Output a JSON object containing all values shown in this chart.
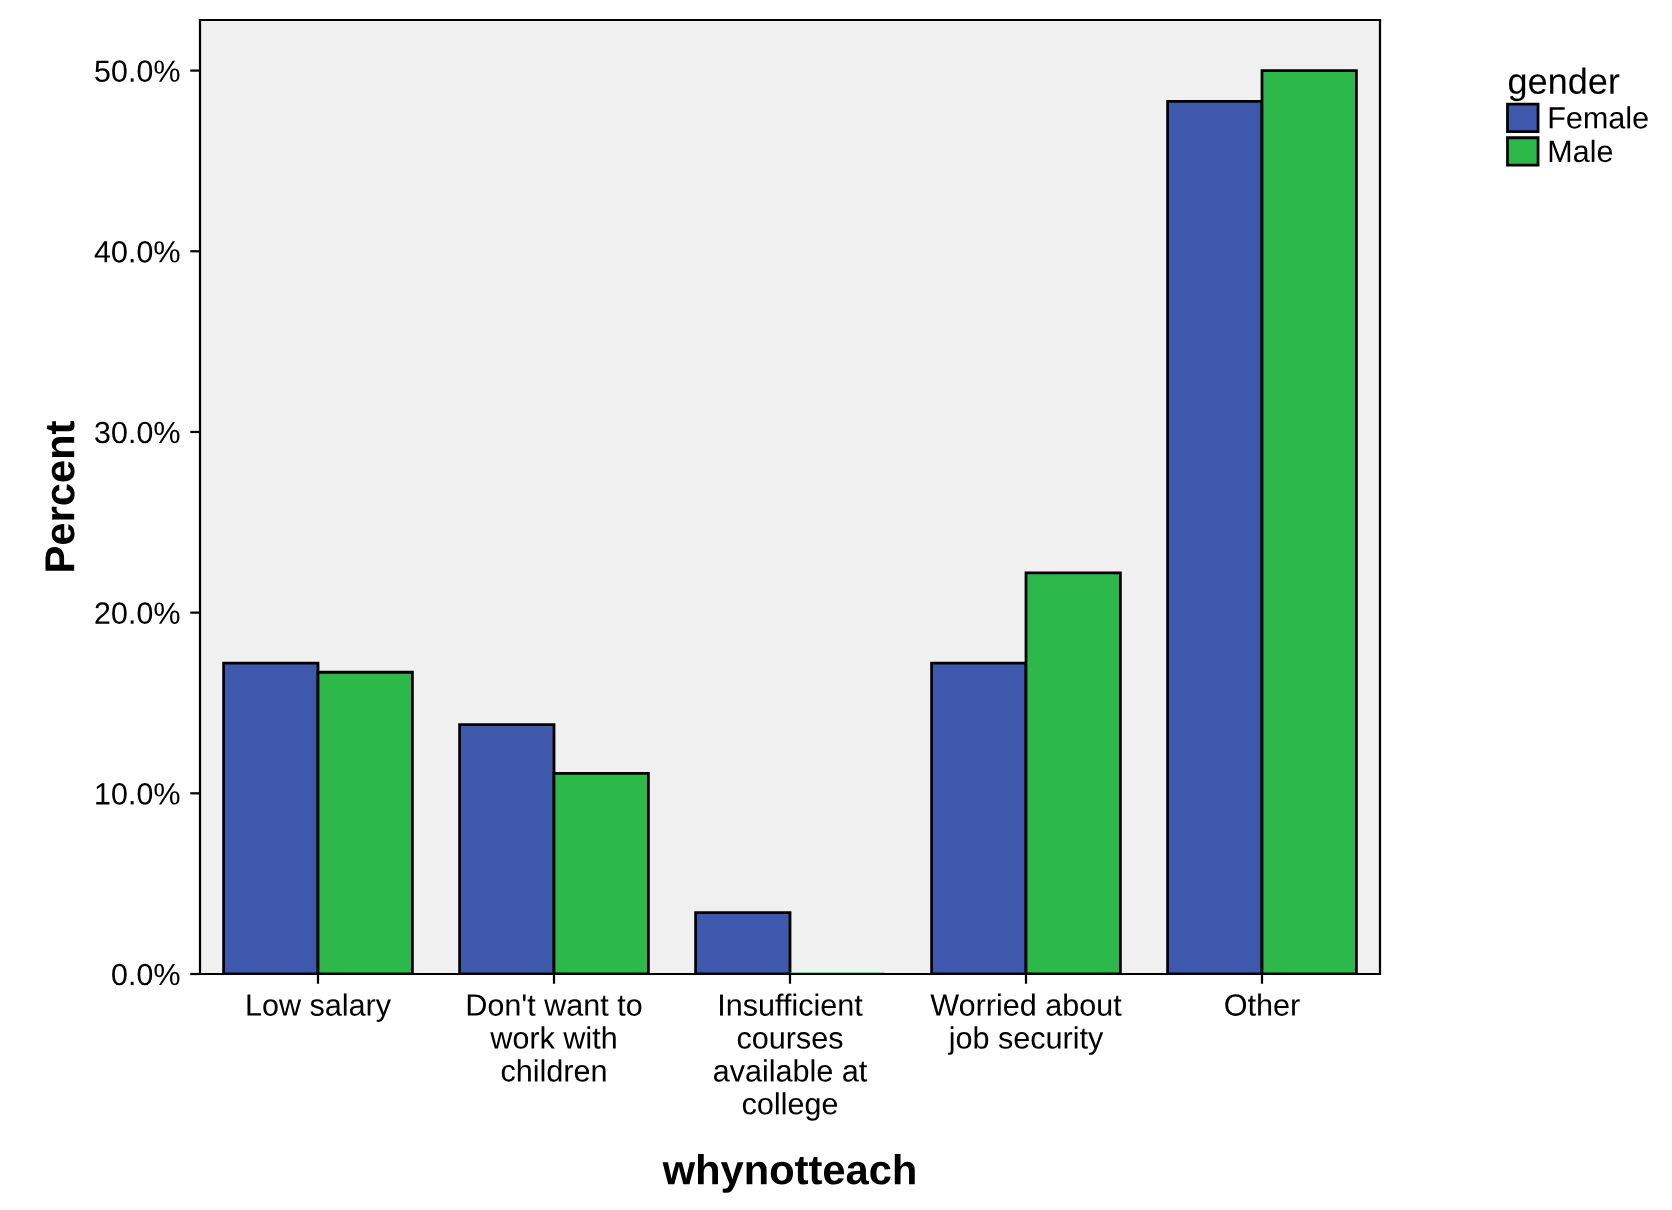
{
  "chart_data": {
    "type": "bar",
    "xlabel": "whynotteach",
    "ylabel": "Percent",
    "legend_title": "gender",
    "legend": "top right",
    "categories": [
      "Low salary",
      "Don't want to\nwork with\nchildren",
      "Insufficient\ncourses\navailable at\ncollege",
      "Worried about\njob security",
      "Other"
    ],
    "series": [
      {
        "name": "Female",
        "color": "#3e58ac",
        "values": [
          17.2,
          13.8,
          3.4,
          17.2,
          48.3
        ]
      },
      {
        "name": "Male",
        "color": "#2db84a",
        "values": [
          16.7,
          11.1,
          0.0,
          22.2,
          50.0
        ]
      }
    ],
    "ylim": [
      0,
      52.8
    ],
    "yticks": [
      {
        "value": 0,
        "label": "0.0%"
      },
      {
        "value": 10,
        "label": "10.0%"
      },
      {
        "value": 20,
        "label": "20.0%"
      },
      {
        "value": 30,
        "label": "30.0%"
      },
      {
        "value": 40,
        "label": "40.0%"
      },
      {
        "value": 50,
        "label": "50.0%"
      }
    ],
    "grid": false
  }
}
